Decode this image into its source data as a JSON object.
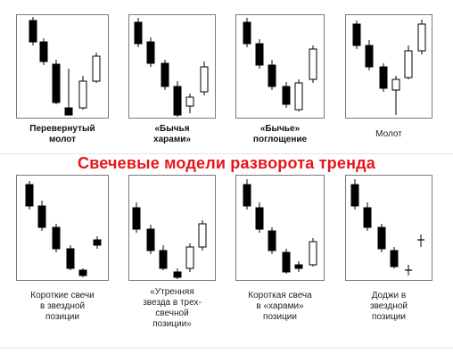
{
  "title": "Свечевые модели разворота тренда",
  "patterns": [
    {
      "id": "inverted-hammer",
      "caption": "Перевернутый\nмолот",
      "bold": true
    },
    {
      "id": "bullish-harami",
      "caption": "«Бычья\nхарами»",
      "bold": true
    },
    {
      "id": "bullish-engulfing",
      "caption": "«Бычье»\nпоглощение",
      "bold": true
    },
    {
      "id": "hammer",
      "caption": "Молот",
      "bold": false
    },
    {
      "id": "short-star",
      "caption": "Короткие свечи\nв звездной\nпозиции",
      "bold": false
    },
    {
      "id": "morning-star",
      "caption": "«Утренняя\nзвезда в трех-\nсвечной\nпозиции»",
      "bold": false
    },
    {
      "id": "short-harami",
      "caption": "Короткая свеча\nв «харами»\nпозиции",
      "bold": false
    },
    {
      "id": "doji-star",
      "caption": "Доджи в\nзвездной\nпозиции",
      "bold": false
    }
  ],
  "colors": {
    "title": "#e8141a",
    "bear": "#000000",
    "bull": "#ffffff",
    "border": "#7a7a7a"
  }
}
